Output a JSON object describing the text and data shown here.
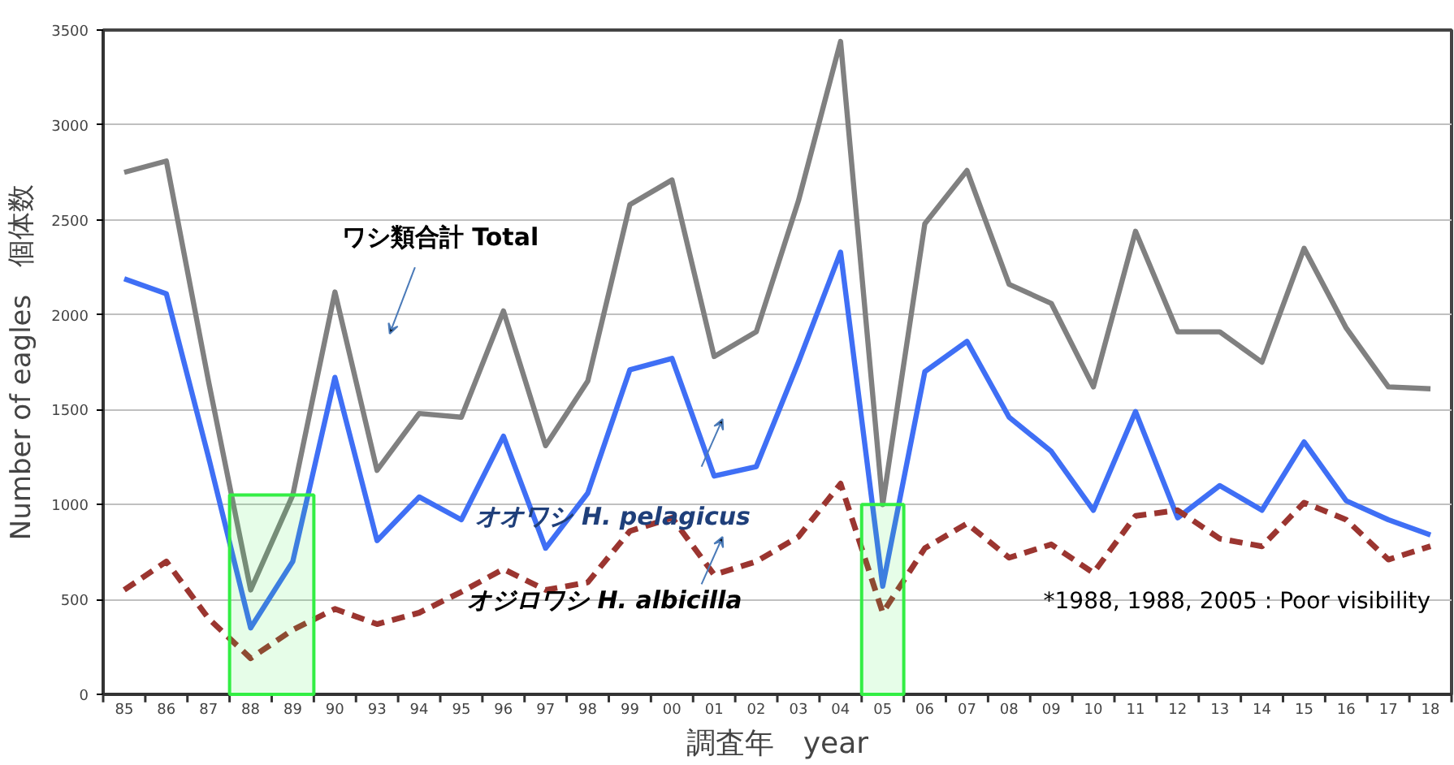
{
  "chart_data": {
    "type": "line",
    "xlabel": "調査年　year",
    "ylabel": "Number of eagles　個体数",
    "categories": [
      "85",
      "86",
      "87",
      "88",
      "89",
      "90",
      "93",
      "94",
      "95",
      "96",
      "97",
      "98",
      "99",
      "00",
      "01",
      "02",
      "03",
      "04",
      "05",
      "06",
      "07",
      "08",
      "09",
      "10",
      "11",
      "12",
      "13",
      "14",
      "15",
      "16",
      "17",
      "18"
    ],
    "series": [
      {
        "name": "ワシ類合計 Total",
        "color": "#808080",
        "line_style": "solid",
        "values": [
          2750,
          2810,
          1650,
          550,
          1050,
          2120,
          1180,
          1480,
          1460,
          2020,
          1310,
          1650,
          2580,
          2710,
          1780,
          1910,
          2600,
          3440,
          1000,
          2480,
          2760,
          2160,
          2060,
          1620,
          2440,
          1910,
          1910,
          1750,
          2350,
          1930,
          1620,
          1610
        ]
      },
      {
        "name": "オオワシ H. pelagicus",
        "color": "#3f6ff5",
        "line_style": "solid",
        "values": [
          2190,
          2110,
          1250,
          350,
          700,
          1670,
          810,
          1040,
          920,
          1360,
          770,
          1060,
          1710,
          1770,
          1150,
          1200,
          1750,
          2330,
          570,
          1700,
          1860,
          1460,
          1280,
          970,
          1490,
          930,
          1100,
          970,
          1330,
          1020,
          920,
          840
        ]
      },
      {
        "name": "オジロワシ H. albicilla",
        "color": "#9b3530",
        "line_style": "dashed",
        "values": [
          550,
          700,
          400,
          190,
          340,
          450,
          370,
          430,
          540,
          660,
          550,
          590,
          860,
          930,
          630,
          700,
          830,
          1110,
          430,
          770,
          900,
          720,
          790,
          640,
          940,
          970,
          820,
          780,
          1010,
          920,
          710,
          780
        ]
      }
    ],
    "ylim": [
      0,
      3500
    ],
    "yticks": [
      0,
      500,
      1000,
      1500,
      2000,
      2500,
      3000,
      3500
    ],
    "grid": "y",
    "marker": "none",
    "bands": [
      {
        "axis": "x",
        "from": "88",
        "to": "89",
        "color": "#33ee44"
      },
      {
        "axis": "x",
        "from": "05",
        "to": "05",
        "color": "#33ee44"
      }
    ],
    "annotations": [
      "*1988, 1988, 2005 : Poor visibility"
    ]
  }
}
